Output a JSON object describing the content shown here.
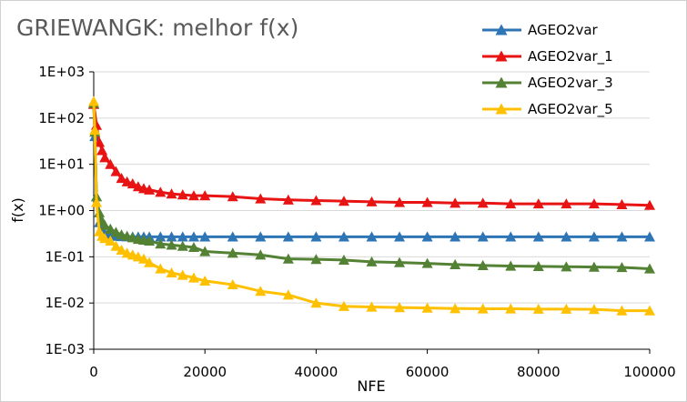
{
  "chart_data": {
    "type": "line",
    "title": "GRIEWANGK: melhor f(x)",
    "xlabel": "NFE",
    "ylabel": "f(x)",
    "xlim": [
      0,
      100000
    ],
    "ylim": [
      0.001,
      1000
    ],
    "yscale": "log",
    "legend_position": "top-right",
    "x_ticks": [
      "0",
      "20000",
      "40000",
      "60000",
      "80000",
      "100000"
    ],
    "y_ticks": [
      "1E-03",
      "1E-02",
      "1E-01",
      "1E+00",
      "1E+01",
      "1E+02",
      "1E+03"
    ],
    "series": [
      {
        "name": "AGEO2var",
        "color": "#2E75B6",
        "x": [
          0,
          200,
          500,
          1000,
          1500,
          2000,
          3000,
          4000,
          5000,
          6000,
          7000,
          8000,
          9000,
          10000,
          12000,
          14000,
          16000,
          18000,
          20000,
          25000,
          30000,
          35000,
          40000,
          45000,
          50000,
          55000,
          60000,
          65000,
          70000,
          75000,
          80000,
          85000,
          90000,
          95000,
          100000
        ],
        "y": [
          200,
          40,
          2.0,
          0.55,
          0.4,
          0.32,
          0.29,
          0.28,
          0.275,
          0.272,
          0.27,
          0.27,
          0.27,
          0.27,
          0.27,
          0.27,
          0.27,
          0.27,
          0.27,
          0.27,
          0.27,
          0.27,
          0.27,
          0.27,
          0.27,
          0.27,
          0.27,
          0.27,
          0.27,
          0.27,
          0.27,
          0.27,
          0.27,
          0.27,
          0.27
        ]
      },
      {
        "name": "AGEO2var_1",
        "color": "#E81313",
        "x": [
          0,
          500,
          1000,
          1500,
          2000,
          3000,
          4000,
          5000,
          6000,
          7000,
          8000,
          9000,
          10000,
          12000,
          14000,
          16000,
          18000,
          20000,
          25000,
          30000,
          35000,
          40000,
          45000,
          50000,
          55000,
          60000,
          65000,
          70000,
          75000,
          80000,
          85000,
          90000,
          95000,
          100000
        ],
        "y": [
          200,
          70,
          30,
          20,
          14,
          10,
          7,
          5,
          4.2,
          3.8,
          3.3,
          3.0,
          2.8,
          2.5,
          2.3,
          2.2,
          2.1,
          2.1,
          2.0,
          1.8,
          1.7,
          1.65,
          1.6,
          1.55,
          1.5,
          1.5,
          1.45,
          1.45,
          1.4,
          1.4,
          1.4,
          1.4,
          1.35,
          1.3
        ]
      },
      {
        "name": "AGEO2var_3",
        "color": "#548235",
        "x": [
          0,
          200,
          500,
          1000,
          1500,
          2000,
          3000,
          4000,
          5000,
          6000,
          7000,
          8000,
          9000,
          10000,
          12000,
          14000,
          16000,
          18000,
          20000,
          25000,
          30000,
          35000,
          40000,
          45000,
          50000,
          55000,
          60000,
          65000,
          70000,
          75000,
          80000,
          85000,
          90000,
          95000,
          100000
        ],
        "y": [
          210,
          50,
          2.0,
          0.9,
          0.6,
          0.48,
          0.4,
          0.34,
          0.3,
          0.28,
          0.26,
          0.24,
          0.23,
          0.22,
          0.19,
          0.18,
          0.17,
          0.16,
          0.13,
          0.12,
          0.11,
          0.09,
          0.088,
          0.085,
          0.078,
          0.075,
          0.072,
          0.068,
          0.065,
          0.063,
          0.062,
          0.061,
          0.06,
          0.059,
          0.055
        ]
      },
      {
        "name": "AGEO2var_5",
        "color": "#FFC000",
        "x": [
          0,
          200,
          500,
          1000,
          1500,
          2000,
          3000,
          4000,
          5000,
          6000,
          7000,
          8000,
          9000,
          10000,
          12000,
          14000,
          16000,
          18000,
          20000,
          25000,
          30000,
          35000,
          40000,
          45000,
          50000,
          55000,
          60000,
          65000,
          70000,
          75000,
          80000,
          85000,
          90000,
          95000,
          100000
        ],
        "y": [
          230,
          55,
          1.5,
          0.35,
          0.28,
          0.25,
          0.22,
          0.17,
          0.14,
          0.12,
          0.11,
          0.1,
          0.09,
          0.075,
          0.055,
          0.045,
          0.04,
          0.035,
          0.03,
          0.025,
          0.018,
          0.015,
          0.01,
          0.0085,
          0.0082,
          0.008,
          0.0078,
          0.0076,
          0.0075,
          0.0075,
          0.0074,
          0.0074,
          0.0073,
          0.0068,
          0.0068
        ]
      }
    ]
  }
}
